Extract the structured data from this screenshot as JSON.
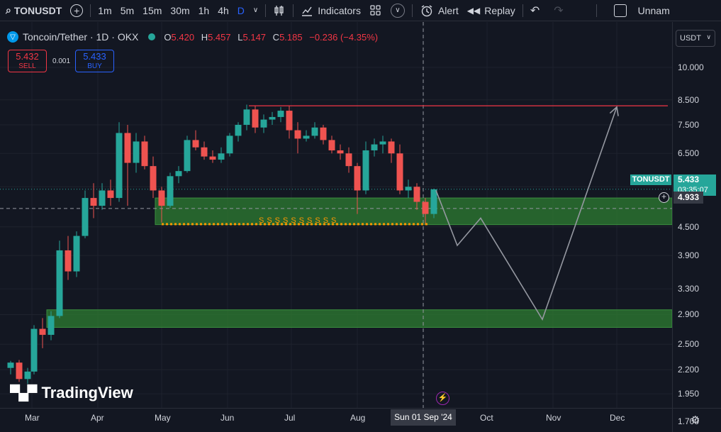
{
  "toolbar": {
    "symbol": "TONUSDT",
    "timeframes": [
      "1m",
      "5m",
      "15m",
      "30m",
      "1h",
      "4h",
      "D"
    ],
    "active_timeframe": "D",
    "indicators_label": "Indicators",
    "alert_label": "Alert",
    "replay_label": "Replay",
    "layout_name": "Unnam"
  },
  "legend": {
    "title": "Toncoin/Tether · 1D · OKX",
    "o_label": "O",
    "o": "5.420",
    "h_label": "H",
    "h": "5.457",
    "l_label": "L",
    "l": "5.147",
    "c_label": "C",
    "c": "5.185",
    "change": "−0.236 (−4.35%)"
  },
  "trade": {
    "sell_price": "5.432",
    "sell_label": "SELL",
    "spread": "0.001",
    "buy_price": "5.433",
    "buy_label": "BUY"
  },
  "currency": "USDT",
  "current": {
    "ticker": "TONUSDT",
    "price": "5.433",
    "countdown": "03:35:07",
    "crosshair_price": "4.933"
  },
  "annotation_text": "SSSSSSSSSS",
  "crosshair_date": "Sun 01 Sep '24",
  "watermark": "TradingView",
  "colors": {
    "background": "#131722",
    "up": "#26a69a",
    "down": "#ef5350",
    "zone": "#2e7d32",
    "resistance": "#f23645",
    "support_dots": "#ff9800",
    "projection": "#9598a1"
  },
  "chart_data": {
    "type": "candlestick",
    "title": "Toncoin/Tether · 1D · OKX",
    "scale": "log",
    "y_ticks": [
      10.0,
      8.5,
      7.5,
      6.5,
      5.5,
      4.5,
      3.9,
      3.3,
      2.9,
      2.5,
      2.2,
      1.95,
      1.7
    ],
    "y_tick_labels": [
      "10.000",
      "8.500",
      "7.500",
      "6.500",
      "",
      "4.500",
      "3.900",
      "3.300",
      "2.900",
      "2.500",
      "2.200",
      "1.950",
      "1.700"
    ],
    "x_ticks": [
      "Mar",
      "Apr",
      "May",
      "Jun",
      "Jul",
      "Aug",
      "Sep",
      "Oct",
      "Nov",
      "Dec"
    ],
    "candles": [
      {
        "date": "2024-02-20",
        "o": 2.22,
        "h": 2.3,
        "l": 2.15,
        "c": 2.28
      },
      {
        "date": "2024-02-24",
        "o": 2.28,
        "h": 2.31,
        "l": 2.07,
        "c": 2.1
      },
      {
        "date": "2024-02-28",
        "o": 2.1,
        "h": 2.22,
        "l": 2.05,
        "c": 2.18
      },
      {
        "date": "2024-03-02",
        "o": 2.18,
        "h": 2.75,
        "l": 2.15,
        "c": 2.7
      },
      {
        "date": "2024-03-06",
        "o": 2.7,
        "h": 2.85,
        "l": 2.45,
        "c": 2.62
      },
      {
        "date": "2024-03-10",
        "o": 2.62,
        "h": 2.95,
        "l": 2.55,
        "c": 2.88
      },
      {
        "date": "2024-03-14",
        "o": 2.88,
        "h": 4.2,
        "l": 2.85,
        "c": 4.0
      },
      {
        "date": "2024-03-18",
        "o": 4.0,
        "h": 4.3,
        "l": 3.45,
        "c": 3.6
      },
      {
        "date": "2024-03-22",
        "o": 3.6,
        "h": 4.4,
        "l": 3.5,
        "c": 4.3
      },
      {
        "date": "2024-03-26",
        "o": 4.3,
        "h": 5.4,
        "l": 4.25,
        "c": 5.2
      },
      {
        "date": "2024-03-30",
        "o": 5.2,
        "h": 5.6,
        "l": 4.7,
        "c": 5.0
      },
      {
        "date": "2024-04-03",
        "o": 5.0,
        "h": 5.6,
        "l": 4.9,
        "c": 5.4
      },
      {
        "date": "2024-04-07",
        "o": 5.4,
        "h": 5.7,
        "l": 5.0,
        "c": 5.2
      },
      {
        "date": "2024-04-11",
        "o": 5.2,
        "h": 7.6,
        "l": 5.1,
        "c": 7.2
      },
      {
        "date": "2024-04-15",
        "o": 7.2,
        "h": 7.5,
        "l": 5.0,
        "c": 6.2
      },
      {
        "date": "2024-04-19",
        "o": 6.2,
        "h": 7.2,
        "l": 5.9,
        "c": 6.9
      },
      {
        "date": "2024-04-23",
        "o": 6.9,
        "h": 7.1,
        "l": 6.0,
        "c": 6.1
      },
      {
        "date": "2024-04-27",
        "o": 6.1,
        "h": 6.4,
        "l": 5.2,
        "c": 5.4
      },
      {
        "date": "2024-05-01",
        "o": 5.4,
        "h": 5.5,
        "l": 4.6,
        "c": 5.0
      },
      {
        "date": "2024-05-05",
        "o": 5.0,
        "h": 5.9,
        "l": 4.95,
        "c": 5.8
      },
      {
        "date": "2024-05-09",
        "o": 5.8,
        "h": 6.1,
        "l": 5.6,
        "c": 5.95
      },
      {
        "date": "2024-05-13",
        "o": 5.95,
        "h": 7.1,
        "l": 5.9,
        "c": 6.95
      },
      {
        "date": "2024-05-17",
        "o": 6.95,
        "h": 7.3,
        "l": 6.6,
        "c": 6.7
      },
      {
        "date": "2024-05-21",
        "o": 6.7,
        "h": 6.9,
        "l": 6.3,
        "c": 6.4
      },
      {
        "date": "2024-05-25",
        "o": 6.4,
        "h": 6.6,
        "l": 6.2,
        "c": 6.3
      },
      {
        "date": "2024-05-29",
        "o": 6.3,
        "h": 6.7,
        "l": 6.2,
        "c": 6.5
      },
      {
        "date": "2024-06-02",
        "o": 6.5,
        "h": 7.2,
        "l": 6.4,
        "c": 7.1
      },
      {
        "date": "2024-06-06",
        "o": 7.1,
        "h": 7.6,
        "l": 6.9,
        "c": 7.5
      },
      {
        "date": "2024-06-10",
        "o": 7.5,
        "h": 8.3,
        "l": 7.3,
        "c": 8.1
      },
      {
        "date": "2024-06-14",
        "o": 8.1,
        "h": 8.25,
        "l": 7.2,
        "c": 7.4
      },
      {
        "date": "2024-06-18",
        "o": 7.4,
        "h": 7.9,
        "l": 7.2,
        "c": 7.7
      },
      {
        "date": "2024-06-22",
        "o": 7.7,
        "h": 8.0,
        "l": 7.5,
        "c": 7.8
      },
      {
        "date": "2024-06-26",
        "o": 7.8,
        "h": 8.2,
        "l": 7.6,
        "c": 8.05
      },
      {
        "date": "2024-06-30",
        "o": 8.05,
        "h": 8.25,
        "l": 7.0,
        "c": 7.3
      },
      {
        "date": "2024-07-04",
        "o": 7.3,
        "h": 7.6,
        "l": 6.5,
        "c": 7.0
      },
      {
        "date": "2024-07-08",
        "o": 7.0,
        "h": 7.3,
        "l": 6.9,
        "c": 7.1
      },
      {
        "date": "2024-07-12",
        "o": 7.1,
        "h": 7.6,
        "l": 7.0,
        "c": 7.4
      },
      {
        "date": "2024-07-16",
        "o": 7.4,
        "h": 7.5,
        "l": 6.8,
        "c": 6.95
      },
      {
        "date": "2024-07-20",
        "o": 6.95,
        "h": 7.1,
        "l": 6.5,
        "c": 6.6
      },
      {
        "date": "2024-07-24",
        "o": 6.6,
        "h": 6.8,
        "l": 6.3,
        "c": 6.5
      },
      {
        "date": "2024-07-28",
        "o": 6.5,
        "h": 6.7,
        "l": 5.9,
        "c": 6.1
      },
      {
        "date": "2024-08-01",
        "o": 6.1,
        "h": 6.2,
        "l": 4.8,
        "c": 5.4
      },
      {
        "date": "2024-08-05",
        "o": 5.4,
        "h": 6.9,
        "l": 5.3,
        "c": 6.6
      },
      {
        "date": "2024-08-09",
        "o": 6.6,
        "h": 7.0,
        "l": 6.4,
        "c": 6.8
      },
      {
        "date": "2024-08-13",
        "o": 6.8,
        "h": 7.1,
        "l": 6.5,
        "c": 6.9
      },
      {
        "date": "2024-08-17",
        "o": 6.9,
        "h": 7.0,
        "l": 6.2,
        "c": 6.5
      },
      {
        "date": "2024-08-21",
        "o": 6.5,
        "h": 6.8,
        "l": 5.3,
        "c": 5.4
      },
      {
        "date": "2024-08-25",
        "o": 5.4,
        "h": 5.7,
        "l": 5.2,
        "c": 5.5
      },
      {
        "date": "2024-08-29",
        "o": 5.5,
        "h": 5.6,
        "l": 4.9,
        "c": 5.1
      },
      {
        "date": "2024-09-02",
        "o": 5.1,
        "h": 5.2,
        "l": 4.55,
        "c": 4.8
      },
      {
        "date": "2024-09-06",
        "o": 4.8,
        "h": 5.45,
        "l": 4.7,
        "c": 5.43
      }
    ],
    "zones": [
      {
        "from": 4.55,
        "to": 5.2
      },
      {
        "from": 2.72,
        "to": 2.97
      }
    ],
    "resistance": {
      "price": 8.25,
      "from": "2024-06-11",
      "to": "2024-12-25"
    },
    "support_dotted": {
      "price": 4.56,
      "from": "2024-05-01",
      "to": "2024-09-04"
    },
    "current_price_line": 5.433,
    "crosshair": {
      "date": "2024-09-01",
      "price": 4.933
    },
    "projection": [
      {
        "date": "2024-09-07",
        "price": 5.4
      },
      {
        "date": "2024-09-17",
        "price": 4.1
      },
      {
        "date": "2024-09-28",
        "price": 4.7
      },
      {
        "date": "2024-10-27",
        "price": 2.83
      },
      {
        "date": "2024-12-01",
        "price": 8.2
      }
    ]
  }
}
